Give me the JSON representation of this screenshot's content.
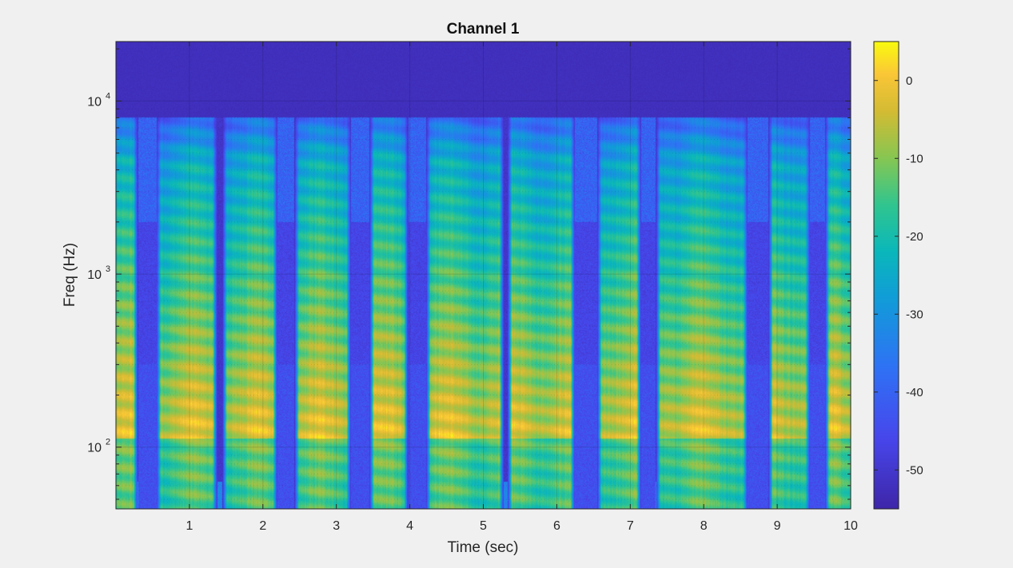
{
  "chart_data": {
    "type": "heatmap",
    "title": "Channel 1",
    "xlabel": "Time (sec)",
    "ylabel": "Freq (Hz)",
    "x_ticks": [
      "1",
      "2",
      "3",
      "4",
      "5",
      "6",
      "7",
      "8",
      "9",
      "10"
    ],
    "xlim": [
      0,
      10
    ],
    "y_scale": "log",
    "ylim": [
      44,
      22050
    ],
    "y_ticks": [
      {
        "base": "10",
        "exp": "2",
        "value": 100
      },
      {
        "base": "10",
        "exp": "3",
        "value": 1000
      },
      {
        "base": "10",
        "exp": "4",
        "value": 10000
      }
    ],
    "grid": true,
    "colormap": "parula",
    "colorbar": {
      "clim": [
        -55,
        5
      ],
      "ticks": [
        "0",
        "-10",
        "-20",
        "-30",
        "-40",
        "-50"
      ],
      "tick_values": [
        0,
        -10,
        -20,
        -30,
        -40,
        -50
      ]
    },
    "silent_gaps_sec": [
      [
        0.3,
        0.55
      ],
      [
        1.38,
        1.45
      ],
      [
        2.2,
        2.43
      ],
      [
        3.2,
        3.45
      ],
      [
        3.98,
        4.22
      ],
      [
        5.28,
        5.33
      ],
      [
        6.25,
        6.55
      ],
      [
        7.15,
        7.35
      ],
      [
        8.6,
        8.88
      ],
      [
        9.45,
        9.65
      ]
    ],
    "noise_bursts_sec": [
      [
        0.3,
        0.55
      ],
      [
        2.2,
        2.43
      ],
      [
        3.2,
        3.45
      ],
      [
        3.98,
        4.22
      ],
      [
        6.25,
        6.55
      ],
      [
        7.15,
        7.35
      ],
      [
        8.6,
        8.88
      ],
      [
        9.45,
        9.65
      ]
    ]
  }
}
